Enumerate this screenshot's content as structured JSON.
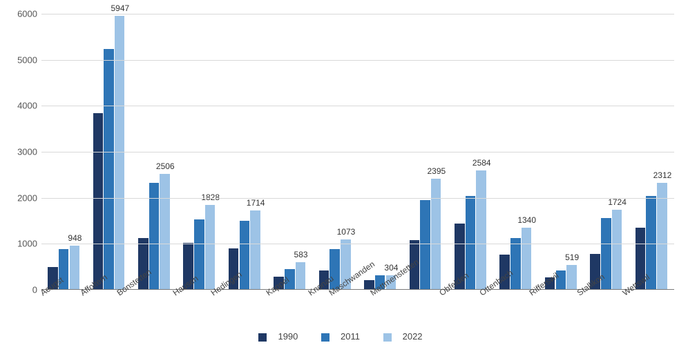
{
  "chart": {
    "type": "bar",
    "background_color": "#ffffff",
    "grid_color": "#d9d9d9",
    "axis_color": "#7a7a7a",
    "ylim": [
      0,
      6000
    ],
    "ytick_step": 1000,
    "tick_fontsize": 13,
    "value_label_fontsize": 12,
    "category_label_fontsize": 12,
    "category_label_rotation_deg": -35,
    "series": [
      {
        "name": "1990",
        "color": "#1f3864"
      },
      {
        "name": "2011",
        "color": "#2e75b6"
      },
      {
        "name": "2022",
        "color": "#9dc3e6"
      }
    ],
    "categories": [
      "Aeugst",
      "Affoltern",
      "Bonstetten",
      "Hausen",
      "Hedingen",
      "Kappel",
      "Knonau",
      "Maschwanden",
      "Mettmenstetten",
      "Obfelden",
      "Ottenbach",
      "Rifferswil",
      "Stallikon",
      "Wettswil"
    ],
    "data": {
      "1990": [
        480,
        3830,
        1110,
        1010,
        880,
        270,
        400,
        200,
        1060,
        1430,
        750,
        260,
        770,
        1330
      ],
      "2011": [
        870,
        5220,
        2310,
        1510,
        1480,
        440,
        870,
        300,
        1930,
        2030,
        1110,
        400,
        1540,
        2030
      ],
      "2022": [
        948,
        5947,
        2506,
        1828,
        1714,
        583,
        1073,
        304,
        2395,
        2584,
        1340,
        519,
        1724,
        2312
      ]
    },
    "value_labels_series": "2022",
    "группа_bar_width_ratio": 0.72
  },
  "legend_labels": {
    "s0": "1990",
    "s1": "2011",
    "s2": "2022"
  }
}
